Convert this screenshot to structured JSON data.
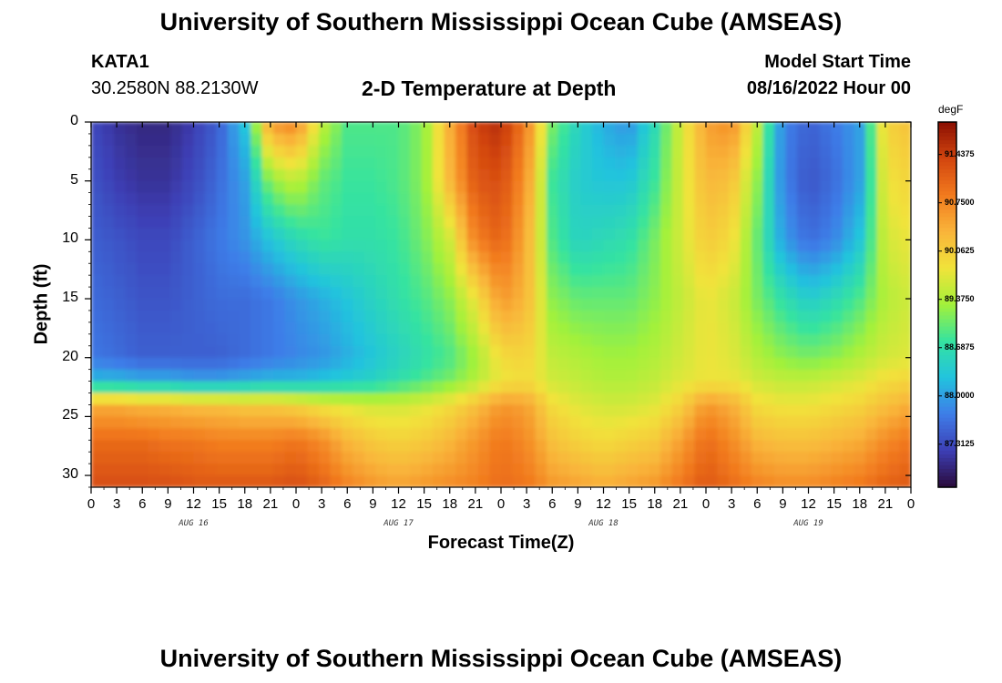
{
  "header": {
    "main_title": "University of Southern Mississippi Ocean Cube (AMSEAS)",
    "station_id": "KATA1",
    "station_coords": "30.2580N  88.2130W",
    "plot_title": "2-D Temperature at Depth",
    "model_label": "Model Start Time",
    "model_time": "08/16/2022 Hour 00"
  },
  "footer": {
    "repeated_title": "University of Southern Mississippi Ocean Cube (AMSEAS)"
  },
  "colors": {
    "colormap": [
      "#2a0a3a",
      "#3d3fb5",
      "#3e7de8",
      "#22c3de",
      "#35e3a0",
      "#a3f13a",
      "#f1e33a",
      "#f9b43a",
      "#f27a1e",
      "#d2450f",
      "#8a0f02"
    ]
  },
  "chart_data": {
    "type": "heatmap",
    "title": "2-D Temperature at Depth",
    "xlabel": "Forecast Time(Z)",
    "ylabel": "Depth (ft)",
    "x_range_hours": [
      0,
      96
    ],
    "ylim": [
      0,
      31
    ],
    "x_tick_labels": [
      "0",
      "3",
      "6",
      "9",
      "12",
      "15",
      "18",
      "21",
      "0",
      "3",
      "6",
      "9",
      "12",
      "15",
      "18",
      "21",
      "0",
      "3",
      "6",
      "9",
      "12",
      "15",
      "18",
      "21",
      "0",
      "3",
      "6",
      "9",
      "12",
      "15",
      "18",
      "21",
      "0"
    ],
    "day_labels": [
      {
        "label": "AUG 16",
        "hour": 12
      },
      {
        "label": "AUG 17",
        "hour": 36
      },
      {
        "label": "AUG 18",
        "hour": 60
      },
      {
        "label": "AUG 19",
        "hour": 84
      }
    ],
    "y_tick_values": [
      0,
      5,
      10,
      15,
      20,
      25,
      30
    ],
    "y_tick_labels": [
      "0",
      "5",
      "10",
      "15",
      "20",
      "25",
      "30"
    ],
    "colorbar": {
      "unit": "degF",
      "range": [
        86.7,
        91.9
      ],
      "tick_values": [
        91.4375,
        90.75,
        90.0625,
        89.375,
        88.6875,
        88.0,
        87.3125
      ],
      "tick_labels": [
        "91.4375",
        "90.7500",
        "90.0625",
        "89.3750",
        "88.6875",
        "88.0000",
        "87.3125"
      ]
    },
    "grid_rows_depth_ft": [
      0,
      5,
      10,
      15,
      20,
      22,
      24,
      27,
      31
    ],
    "grid_cols_hours": [
      0,
      3,
      6,
      9,
      12,
      15,
      18,
      21,
      24,
      27,
      30,
      33,
      36,
      39,
      42,
      45,
      48,
      51,
      54,
      57,
      60,
      63,
      66,
      69,
      72,
      75,
      78,
      81,
      84,
      87,
      90,
      93,
      96
    ],
    "temperature_degF": [
      [
        87.3,
        87.1,
        87.0,
        87.0,
        87.2,
        87.5,
        88.3,
        90.6,
        90.8,
        89.5,
        88.9,
        88.9,
        88.9,
        89.2,
        90.4,
        91.4,
        91.6,
        90.8,
        89.1,
        88.5,
        88.1,
        87.9,
        88.6,
        89.6,
        90.5,
        90.7,
        89.5,
        87.8,
        87.5,
        87.7,
        88.0,
        90.0,
        90.2
      ],
      [
        87.4,
        87.2,
        87.1,
        87.1,
        87.3,
        87.6,
        88.0,
        89.2,
        89.5,
        89.0,
        88.8,
        88.8,
        88.9,
        89.2,
        90.3,
        91.2,
        91.3,
        90.6,
        88.8,
        88.4,
        88.3,
        88.3,
        88.8,
        89.6,
        90.3,
        90.2,
        89.2,
        87.8,
        87.4,
        87.6,
        88.0,
        89.8,
        90.0
      ],
      [
        87.5,
        87.4,
        87.3,
        87.3,
        87.5,
        87.7,
        87.9,
        88.3,
        88.6,
        88.8,
        88.7,
        88.7,
        88.8,
        89.1,
        89.6,
        90.8,
        91.1,
        90.4,
        88.9,
        88.5,
        88.6,
        88.7,
        89.1,
        89.6,
        90.1,
        89.9,
        89.0,
        88.0,
        87.6,
        87.8,
        88.3,
        89.6,
        89.8
      ],
      [
        87.6,
        87.5,
        87.4,
        87.4,
        87.5,
        87.6,
        87.6,
        87.7,
        87.9,
        88.1,
        88.3,
        88.5,
        88.7,
        88.9,
        89.2,
        89.8,
        90.6,
        90.3,
        89.2,
        89.0,
        89.0,
        89.0,
        89.2,
        89.5,
        89.8,
        89.6,
        89.1,
        88.7,
        88.4,
        88.6,
        88.9,
        89.4,
        89.6
      ],
      [
        87.7,
        87.6,
        87.5,
        87.5,
        87.5,
        87.5,
        87.6,
        87.7,
        87.8,
        87.9,
        88.1,
        88.3,
        88.5,
        88.7,
        88.9,
        89.3,
        89.9,
        90.0,
        89.5,
        89.4,
        89.3,
        89.3,
        89.4,
        89.6,
        89.8,
        89.7,
        89.4,
        89.2,
        89.1,
        89.2,
        89.4,
        89.6,
        89.7
      ],
      [
        88.2,
        88.2,
        88.1,
        88.1,
        88.0,
        88.0,
        88.1,
        88.2,
        88.2,
        88.3,
        88.4,
        88.5,
        88.7,
        88.9,
        89.1,
        89.4,
        89.8,
        89.9,
        89.6,
        89.5,
        89.4,
        89.4,
        89.5,
        89.7,
        89.8,
        89.8,
        89.6,
        89.5,
        89.5,
        89.6,
        89.7,
        89.9,
        90.0
      ],
      [
        90.4,
        90.4,
        90.3,
        90.3,
        90.2,
        90.2,
        90.1,
        90.1,
        90.0,
        89.8,
        89.7,
        89.6,
        89.6,
        89.7,
        89.9,
        90.2,
        90.6,
        90.5,
        89.9,
        89.7,
        89.6,
        89.6,
        89.7,
        90.0,
        90.6,
        90.4,
        89.9,
        89.8,
        89.8,
        89.9,
        90.0,
        90.2,
        90.4
      ],
      [
        91.0,
        91.0,
        91.0,
        90.9,
        90.9,
        90.8,
        90.8,
        90.8,
        90.9,
        90.7,
        90.3,
        90.1,
        90.0,
        90.1,
        90.3,
        90.6,
        90.9,
        90.7,
        90.2,
        90.0,
        89.9,
        90.0,
        90.1,
        90.5,
        91.0,
        90.7,
        90.3,
        90.2,
        90.2,
        90.3,
        90.4,
        90.7,
        90.9
      ],
      [
        91.3,
        91.3,
        91.3,
        91.3,
        91.2,
        91.2,
        91.2,
        91.2,
        91.3,
        91.1,
        90.8,
        90.6,
        90.5,
        90.6,
        90.7,
        90.8,
        91.0,
        90.9,
        90.6,
        90.5,
        90.4,
        90.5,
        90.6,
        90.9,
        91.2,
        91.0,
        90.8,
        90.7,
        90.7,
        90.8,
        90.9,
        91.1,
        91.2
      ]
    ]
  }
}
